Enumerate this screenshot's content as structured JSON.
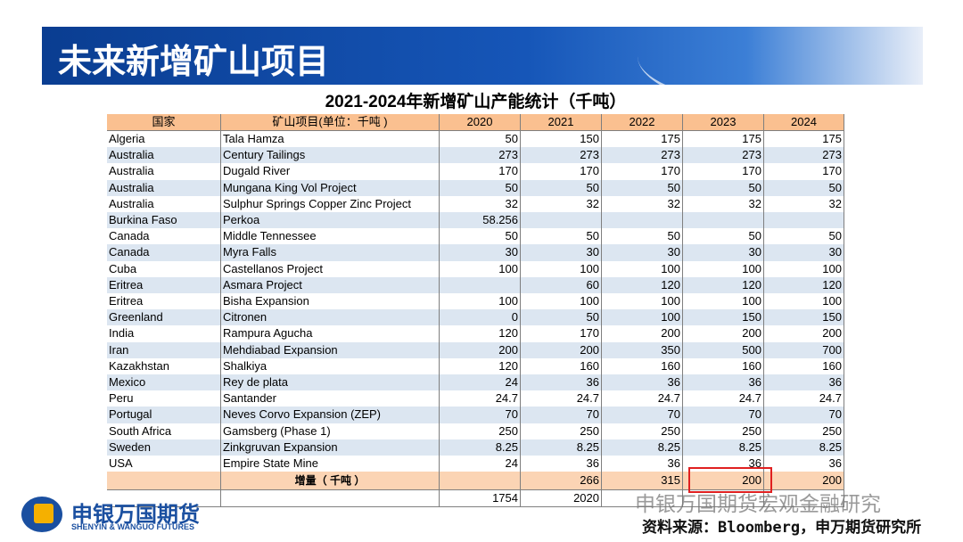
{
  "header": {
    "title": "未来新增矿山项目"
  },
  "table": {
    "title": "2021-2024年新增矿山产能统计（千吨）",
    "columns": [
      "国家",
      "矿山项目(单位：千吨 )",
      "2020",
      "2021",
      "2022",
      "2023",
      "2024"
    ],
    "rows": [
      [
        "Algeria",
        "Tala Hamza",
        50,
        150,
        175,
        175,
        175
      ],
      [
        "Australia",
        "Century Tailings",
        273,
        273,
        273,
        273,
        273
      ],
      [
        "Australia",
        "Dugald River",
        170,
        170,
        170,
        170,
        170
      ],
      [
        "Australia",
        "Mungana King Vol Project",
        50,
        50,
        50,
        50,
        50
      ],
      [
        "Australia",
        "Sulphur Springs Copper Zinc Project",
        32,
        32,
        32,
        32,
        32
      ],
      [
        "Burkina Faso",
        "Perkoa",
        58.256,
        null,
        null,
        null,
        null
      ],
      [
        "Canada",
        "Middle Tennessee",
        50,
        50,
        50,
        50,
        50
      ],
      [
        "Canada",
        "Myra Falls",
        30,
        30,
        30,
        30,
        30
      ],
      [
        "Cuba",
        "Castellanos Project",
        100,
        100,
        100,
        100,
        100
      ],
      [
        "Eritrea",
        "Asmara Project",
        null,
        60,
        120,
        120,
        120
      ],
      [
        "Eritrea",
        "Bisha Expansion",
        100,
        100,
        100,
        100,
        100
      ],
      [
        "Greenland",
        "Citronen",
        0,
        50,
        100,
        150,
        150
      ],
      [
        "India",
        "Rampura Agucha",
        120,
        170,
        200,
        200,
        200
      ],
      [
        "Iran",
        "Mehdiabad Expansion",
        200,
        200,
        350,
        500,
        700
      ],
      [
        "Kazakhstan",
        "Shalkiya",
        120,
        160,
        160,
        160,
        160
      ],
      [
        "Mexico",
        "Rey de plata",
        24,
        36,
        36,
        36,
        36
      ],
      [
        "Peru",
        "Santander",
        24.7,
        24.7,
        24.7,
        24.7,
        24.7
      ],
      [
        "Portugal",
        "Neves Corvo Expansion (ZEP)",
        70,
        70,
        70,
        70,
        70
      ],
      [
        "South Africa",
        "Gamsberg (Phase 1)",
        250,
        250,
        250,
        250,
        250
      ],
      [
        "Sweden",
        "Zinkgruvan Expansion",
        8.25,
        8.25,
        8.25,
        8.25,
        8.25
      ],
      [
        "USA",
        "Empire State Mine",
        24,
        36,
        36,
        36,
        36
      ]
    ],
    "increment": {
      "label": "增量（ 千吨 ）",
      "values": [
        null,
        266,
        315,
        200,
        200
      ]
    },
    "total": {
      "values": [
        1754,
        2020
      ]
    }
  },
  "logo": {
    "name": "申银万国期货",
    "english": "SHENYIN & WANGUO FUTURES"
  },
  "watermark": "申银万国期货宏观金融研究",
  "source": "资料来源：Bloomberg，申万期货研究所"
}
